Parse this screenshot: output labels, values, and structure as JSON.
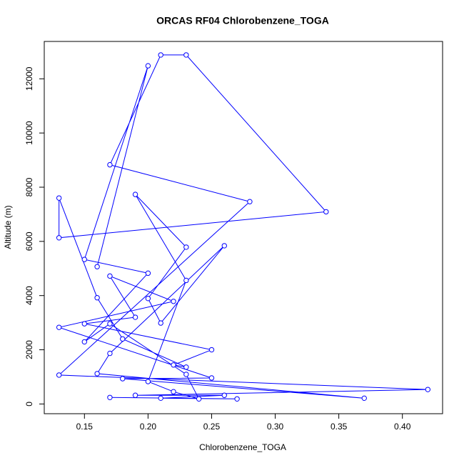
{
  "chart_data": {
    "type": "line",
    "title": "ORCAS RF04 Chlorobenzene_TOGA",
    "x_label": "Chlorobenzene_TOGA",
    "y_label": "Altitude (m)",
    "x": [
      0.17,
      0.27,
      0.21,
      0.26,
      0.19,
      0.42,
      0.13,
      0.28,
      0.17,
      0.21,
      0.23,
      0.34,
      0.13,
      0.13,
      0.16,
      0.18,
      0.23,
      0.22,
      0.25,
      0.15,
      0.19,
      0.17,
      0.22,
      0.13,
      0.25,
      0.18,
      0.37,
      0.16,
      0.17,
      0.26,
      0.21,
      0.2,
      0.23,
      0.19,
      0.23,
      0.2,
      0.22,
      0.24,
      0.23,
      0.17,
      0.15,
      0.2,
      0.15,
      0.2,
      0.16
    ],
    "values": [
      240,
      187,
      213,
      320,
      320,
      533,
      1067,
      7467,
      8827,
      12880,
      12880,
      7093,
      6133,
      7600,
      3920,
      2400,
      1360,
      1440,
      2000,
      2960,
      3200,
      4720,
      3787,
      2827,
      960,
      933,
      213,
      1120,
      1867,
      5840,
      2987,
      3893,
      5787,
      7733,
      4560,
      827,
      453,
      187,
      1093,
      2960,
      2293,
      4827,
      5333,
      12480,
      5067
    ],
    "color": "#0000ff",
    "xlim": [
      0.1184,
      0.4316
    ],
    "xticks": [
      0.15,
      {
        "value": 0.2,
        "label": "0.20"
      },
      0.25,
      {
        "value": 0.3,
        "label": "0.30"
      },
      0.35,
      {
        "value": 0.4,
        "label": "0.40"
      }
    ],
    "ylim": [
      -359,
      13379
    ],
    "yticks": [
      0,
      2000,
      4000,
      6000,
      8000,
      10000,
      12000
    ]
  }
}
